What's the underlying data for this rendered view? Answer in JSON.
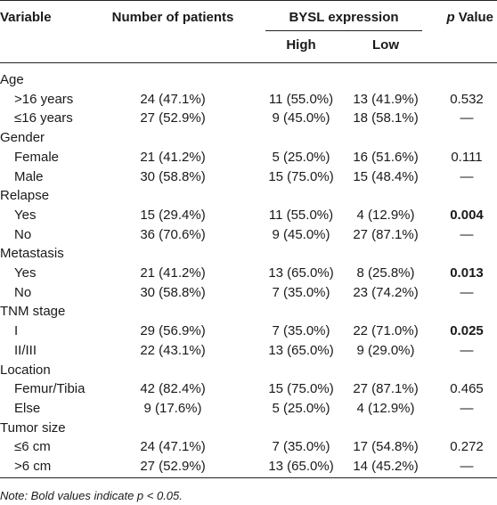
{
  "headers": {
    "variable": "Variable",
    "patients": "Number of patients",
    "bysl": "BYSL expression",
    "high": "High",
    "low": "Low",
    "p_italic": "p",
    "p_rest": " Value"
  },
  "groups": [
    {
      "label": "Age",
      "rows": [
        {
          "label": ">16 years",
          "patients": "24 (47.1%)",
          "high": "11 (55.0%)",
          "low": "13 (41.9%)",
          "p": "0.532",
          "bold": false
        },
        {
          "label": "≤16 years",
          "patients": "27 (52.9%)",
          "high": "9 (45.0%)",
          "low": "18 (58.1%)",
          "p": "—",
          "bold": false
        }
      ]
    },
    {
      "label": "Gender",
      "rows": [
        {
          "label": "Female",
          "patients": "21 (41.2%)",
          "high": "5 (25.0%)",
          "low": "16 (51.6%)",
          "p": "0.111",
          "bold": false
        },
        {
          "label": "Male",
          "patients": "30 (58.8%)",
          "high": "15 (75.0%)",
          "low": "15 (48.4%)",
          "p": "—",
          "bold": false
        }
      ]
    },
    {
      "label": "Relapse",
      "rows": [
        {
          "label": "Yes",
          "patients": "15 (29.4%)",
          "high": "11 (55.0%)",
          "low": "4 (12.9%)",
          "p": "0.004",
          "bold": true
        },
        {
          "label": "No",
          "patients": "36 (70.6%)",
          "high": "9 (45.0%)",
          "low": "27 (87.1%)",
          "p": "—",
          "bold": false
        }
      ]
    },
    {
      "label": "Metastasis",
      "rows": [
        {
          "label": "Yes",
          "patients": "21 (41.2%)",
          "high": "13 (65.0%)",
          "low": "8 (25.8%)",
          "p": "0.013",
          "bold": true
        },
        {
          "label": "No",
          "patients": "30 (58.8%)",
          "high": "7 (35.0%)",
          "low": "23 (74.2%)",
          "p": "—",
          "bold": false
        }
      ]
    },
    {
      "label": "TNM stage",
      "rows": [
        {
          "label": "I",
          "patients": "29 (56.9%)",
          "high": "7 (35.0%)",
          "low": "22 (71.0%)",
          "p": "0.025",
          "bold": true
        },
        {
          "label": "II/III",
          "patients": "22 (43.1%)",
          "high": "13 (65.0%)",
          "low": "9 (29.0%)",
          "p": "—",
          "bold": false
        }
      ]
    },
    {
      "label": "Location",
      "rows": [
        {
          "label": "Femur/Tibia",
          "patients": "42 (82.4%)",
          "high": "15 (75.0%)",
          "low": "27 (87.1%)",
          "p": "0.465",
          "bold": false
        },
        {
          "label": "Else",
          "patients": "9 (17.6%)",
          "high": "5 (25.0%)",
          "low": "4 (12.9%)",
          "p": "—",
          "bold": false
        }
      ]
    },
    {
      "label": "Tumor size",
      "rows": [
        {
          "label": "≤6 cm",
          "patients": "24 (47.1%)",
          "high": "7 (35.0%)",
          "low": "17 (54.8%)",
          "p": "0.272",
          "bold": false
        },
        {
          "label": ">6 cm",
          "patients": "27 (52.9%)",
          "high": "13 (65.0%)",
          "low": "14 (45.2%)",
          "p": "—",
          "bold": false
        }
      ]
    }
  ],
  "note": "Note: Bold values indicate p < 0.05."
}
